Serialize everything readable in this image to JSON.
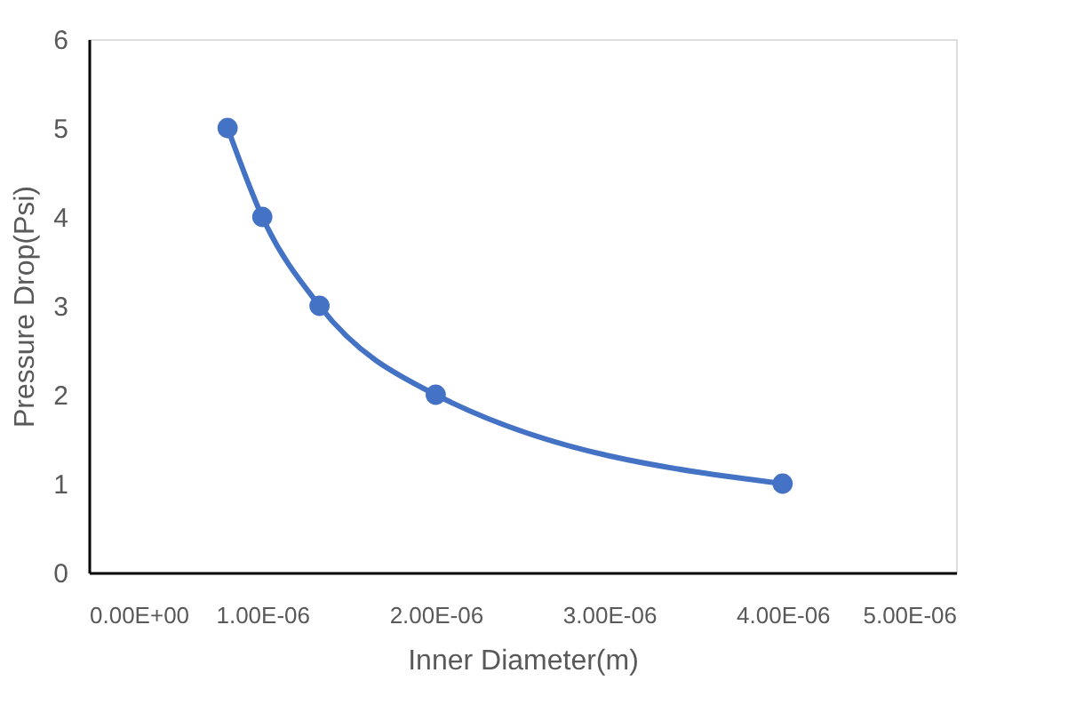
{
  "chart_data": {
    "type": "line",
    "xlabel": "Inner Diameter(m)",
    "ylabel": "Pressure Drop(Psi)",
    "x": [
      8e-07,
      1e-06,
      1.33e-06,
      2e-06,
      4e-06
    ],
    "series": [
      {
        "color": "#4472c4",
        "values": [
          5,
          4,
          3,
          2,
          1
        ]
      }
    ],
    "xlim": [
      0,
      5e-06
    ],
    "xticks": [
      {
        "value": 0,
        "label": "0.00E+00"
      },
      {
        "value": 1e-06,
        "label": "1.00E-06"
      },
      {
        "value": 2e-06,
        "label": "2.00E-06"
      },
      {
        "value": 3e-06,
        "label": "3.00E-06"
      },
      {
        "value": 4e-06,
        "label": "4.00E-06"
      },
      {
        "value": 5e-06,
        "label": "5.00E-06"
      }
    ],
    "ylim": [
      0,
      6
    ],
    "yticks": [
      0,
      1,
      2,
      3,
      4,
      5,
      6
    ],
    "grid": false,
    "marker": "circle",
    "line_style": "solid"
  }
}
